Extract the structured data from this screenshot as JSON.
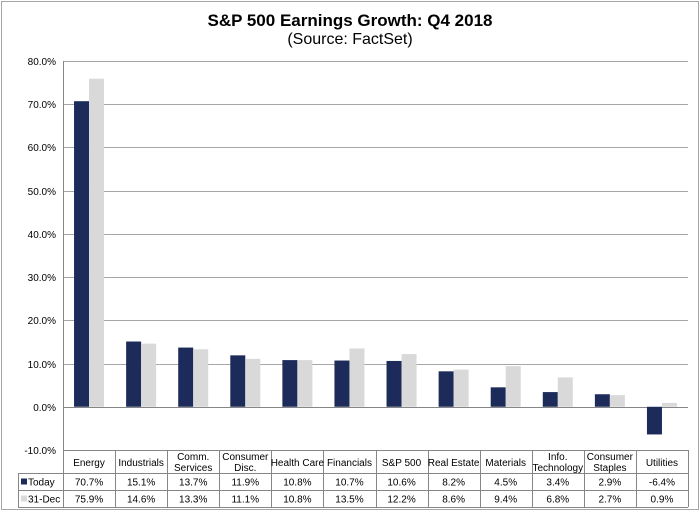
{
  "chart_data": {
    "type": "bar",
    "title": "S&P 500 Earnings Growth: Q4 2018",
    "subtitle": "(Source: FactSet)",
    "categories": [
      [
        "Energy"
      ],
      [
        "Industrials"
      ],
      [
        "Comm.",
        "Services"
      ],
      [
        "Consumer",
        "Disc."
      ],
      [
        "Health Care"
      ],
      [
        "Financials"
      ],
      [
        "S&P 500"
      ],
      [
        "Real Estate"
      ],
      [
        "Materials"
      ],
      [
        "Info.",
        "Technology"
      ],
      [
        "Consumer",
        "Staples"
      ],
      [
        "Utilities"
      ]
    ],
    "series": [
      {
        "name": "Today",
        "color": "#1c2b59",
        "values": [
          70.7,
          15.1,
          13.7,
          11.9,
          10.8,
          10.7,
          10.6,
          8.2,
          4.5,
          3.4,
          2.9,
          -6.4
        ],
        "labels": [
          "70.7%",
          "15.1%",
          "13.7%",
          "11.9%",
          "10.8%",
          "10.7%",
          "10.6%",
          "8.2%",
          "4.5%",
          "3.4%",
          "2.9%",
          "-6.4%"
        ]
      },
      {
        "name": "31-Dec",
        "color": "#d9d9d9",
        "values": [
          75.9,
          14.6,
          13.3,
          11.1,
          10.8,
          13.5,
          12.2,
          8.6,
          9.4,
          6.8,
          2.7,
          0.9
        ],
        "labels": [
          "75.9%",
          "14.6%",
          "13.3%",
          "11.1%",
          "10.8%",
          "13.5%",
          "12.2%",
          "8.6%",
          "9.4%",
          "6.8%",
          "2.7%",
          "0.9%"
        ]
      }
    ],
    "ylim": [
      -10,
      80
    ],
    "yticks": [
      "-10.0%",
      "0.0%",
      "10.0%",
      "20.0%",
      "30.0%",
      "40.0%",
      "50.0%",
      "60.0%",
      "70.0%",
      "80.0%"
    ],
    "grid": true,
    "legend": "data-table"
  }
}
